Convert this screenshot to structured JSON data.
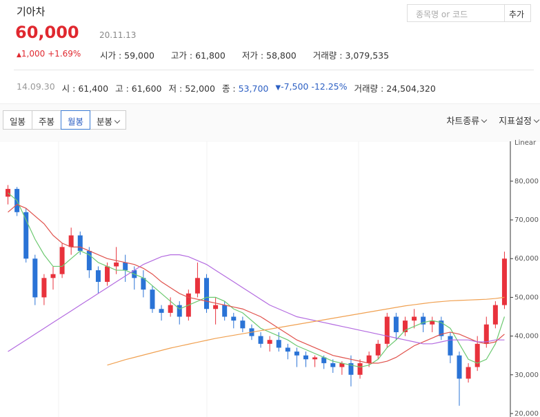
{
  "header": {
    "name": "기아차",
    "price": "60,000",
    "date": "20.11.13",
    "change": "1,000",
    "change_pct": "+1.69%",
    "stats": [
      {
        "label": "시가 :",
        "value": "59,000"
      },
      {
        "label": "고가 :",
        "value": "61,800"
      },
      {
        "label": "저가 :",
        "value": "58,800"
      },
      {
        "label": "거래량 :",
        "value": "3,079,535"
      }
    ]
  },
  "search": {
    "placeholder": "종목명 or 코드",
    "button": "추가"
  },
  "hover": {
    "date": "14.09.30",
    "stats": [
      {
        "label": "시 :",
        "value": "61,400"
      },
      {
        "label": "고 :",
        "value": "61,600"
      },
      {
        "label": "저 :",
        "value": "52,000"
      },
      {
        "label": "종 :",
        "value": "53,700"
      }
    ],
    "change": "-7,500",
    "change_pct": "-12.25%",
    "volume_label": "거래량 :",
    "volume": "24,504,320"
  },
  "toolbar": {
    "periods": [
      "일봉",
      "주봉",
      "월봉",
      "분봉"
    ],
    "active": 2,
    "menus": [
      "차트종류",
      "지표설정"
    ]
  },
  "chart_data": {
    "type": "candlestick",
    "up_color": "#e8323c",
    "down_color": "#2a73d6",
    "open": [
      76000,
      78000,
      72000,
      60000,
      50000,
      55000,
      56000,
      63000,
      66000,
      62000,
      57000,
      54000,
      58000,
      59000,
      57000,
      55000,
      52000,
      47000,
      46000,
      48000,
      45000,
      51000,
      55000,
      47000,
      48000,
      45000,
      44000,
      42000,
      40000,
      38000,
      39000,
      37000,
      36000,
      35000,
      34000,
      34500,
      33000,
      32000,
      33000,
      30000,
      33000,
      35000,
      38000,
      45000,
      41000,
      44000,
      45000,
      43000,
      44000,
      40000,
      35000,
      29000,
      32000,
      38000,
      43000,
      48000
    ],
    "high": [
      79000,
      78500,
      73000,
      61000,
      56000,
      58000,
      64000,
      68000,
      67000,
      63000,
      58000,
      59000,
      63000,
      61000,
      58000,
      57000,
      53000,
      48000,
      50000,
      49000,
      52000,
      59000,
      56000,
      50000,
      49000,
      46000,
      45000,
      43000,
      41000,
      40000,
      41000,
      38000,
      37000,
      36000,
      35000,
      35000,
      34000,
      33500,
      35000,
      34000,
      36000,
      39000,
      46000,
      46000,
      45000,
      47000,
      46000,
      45000,
      45000,
      41000,
      36000,
      33000,
      40000,
      45000,
      49000,
      61800
    ],
    "low": [
      74000,
      71000,
      59000,
      48000,
      48000,
      52000,
      55000,
      61000,
      61000,
      55000,
      51000,
      53000,
      56000,
      54000,
      52000,
      50000,
      46000,
      44000,
      45000,
      43000,
      44000,
      50000,
      46000,
      43000,
      44000,
      42000,
      41000,
      39000,
      37000,
      36000,
      36000,
      34000,
      32000,
      32000,
      32000,
      31500,
      30500,
      30000,
      27000,
      29000,
      32000,
      34000,
      37000,
      39000,
      40000,
      42000,
      41000,
      41000,
      39000,
      33000,
      22000,
      28000,
      31000,
      37000,
      42000,
      47000
    ],
    "close": [
      78000,
      72000,
      60000,
      50000,
      55000,
      56000,
      63000,
      66000,
      62000,
      57000,
      54000,
      58000,
      59000,
      57000,
      55000,
      52000,
      47000,
      46000,
      48000,
      45000,
      51000,
      55000,
      47000,
      48000,
      45000,
      44000,
      42000,
      40000,
      38000,
      39000,
      37000,
      36000,
      35000,
      34000,
      34500,
      33000,
      32000,
      33000,
      30000,
      33000,
      35000,
      38000,
      45000,
      41000,
      44000,
      45000,
      43000,
      44000,
      40000,
      35000,
      29000,
      32000,
      38000,
      43000,
      48000,
      60000
    ],
    "lines": [
      {
        "color": "#6cc970",
        "values": [
          77000,
          75000,
          70000,
          65000,
          61000,
          58000,
          58000,
          60000,
          62000,
          61000,
          59000,
          58000,
          57000,
          57000,
          56000,
          55000,
          53000,
          51000,
          49000,
          47000,
          48000,
          49000,
          50000,
          50000,
          49000,
          47000,
          46000,
          44000,
          42000,
          41000,
          40000,
          39000,
          37500,
          36500,
          35500,
          34500,
          33500,
          33000,
          32500,
          32000,
          32500,
          34000,
          37000,
          39000,
          41500,
          42500,
          43500,
          44000,
          43500,
          42000,
          38000,
          34000,
          33000,
          34000,
          38000,
          45000
        ]
      },
      {
        "color": "#e0504a",
        "values": [
          72000,
          74000,
          73000,
          71000,
          69000,
          66000,
          64000,
          63000,
          63000,
          62000,
          61000,
          60000,
          59500,
          59000,
          58500,
          57500,
          56000,
          54000,
          52500,
          51000,
          50000,
          49500,
          49000,
          48500,
          48000,
          47500,
          47000,
          46000,
          45000,
          43500,
          42000,
          40500,
          39000,
          38000,
          37000,
          36000,
          35000,
          34500,
          34000,
          33500,
          33000,
          33000,
          33500,
          34500,
          36000,
          37500,
          38500,
          39500,
          40500,
          41000,
          40500,
          39500,
          38500,
          38000,
          38500,
          40500
        ]
      },
      {
        "color": "#b36ae0",
        "values": [
          36000,
          37500,
          39000,
          40500,
          42000,
          43500,
          45000,
          46500,
          48000,
          49500,
          51000,
          52500,
          54000,
          55500,
          57000,
          58500,
          59500,
          60500,
          61000,
          61000,
          60500,
          59500,
          58500,
          57000,
          55500,
          54000,
          52500,
          51000,
          49500,
          48000,
          47000,
          46000,
          45000,
          44500,
          44000,
          43500,
          43000,
          42500,
          42000,
          41500,
          41000,
          40500,
          40000,
          39500,
          39000,
          38500,
          38000,
          38000,
          38500,
          39000,
          39000,
          39000,
          38500,
          38500,
          39000,
          39000
        ]
      },
      {
        "color": "#f0a050",
        "values": [
          null,
          null,
          null,
          null,
          null,
          null,
          null,
          null,
          null,
          null,
          null,
          32500,
          33200,
          33900,
          34500,
          35100,
          35700,
          36300,
          36900,
          37400,
          37900,
          38400,
          38900,
          39400,
          39800,
          40200,
          40600,
          41000,
          41400,
          41800,
          42200,
          42600,
          43000,
          43400,
          43800,
          44200,
          44600,
          45000,
          45400,
          45800,
          46200,
          46600,
          47000,
          47400,
          47800,
          48100,
          48400,
          48700,
          48900,
          49100,
          49200,
          49300,
          49400,
          49500,
          49700,
          50000
        ]
      }
    ],
    "ylim": [
      19100,
      90300
    ],
    "yticks": [
      {
        "value": 20000,
        "label": "20,000"
      },
      {
        "value": 30000,
        "label": "30,000"
      },
      {
        "value": 40000,
        "label": "40,000"
      },
      {
        "value": 50000,
        "label": "50,000"
      },
      {
        "value": 60000,
        "label": "60,000"
      },
      {
        "value": 70000,
        "label": "70,000"
      },
      {
        "value": 80000,
        "label": "80,000"
      }
    ],
    "scale_label": "Linear"
  }
}
